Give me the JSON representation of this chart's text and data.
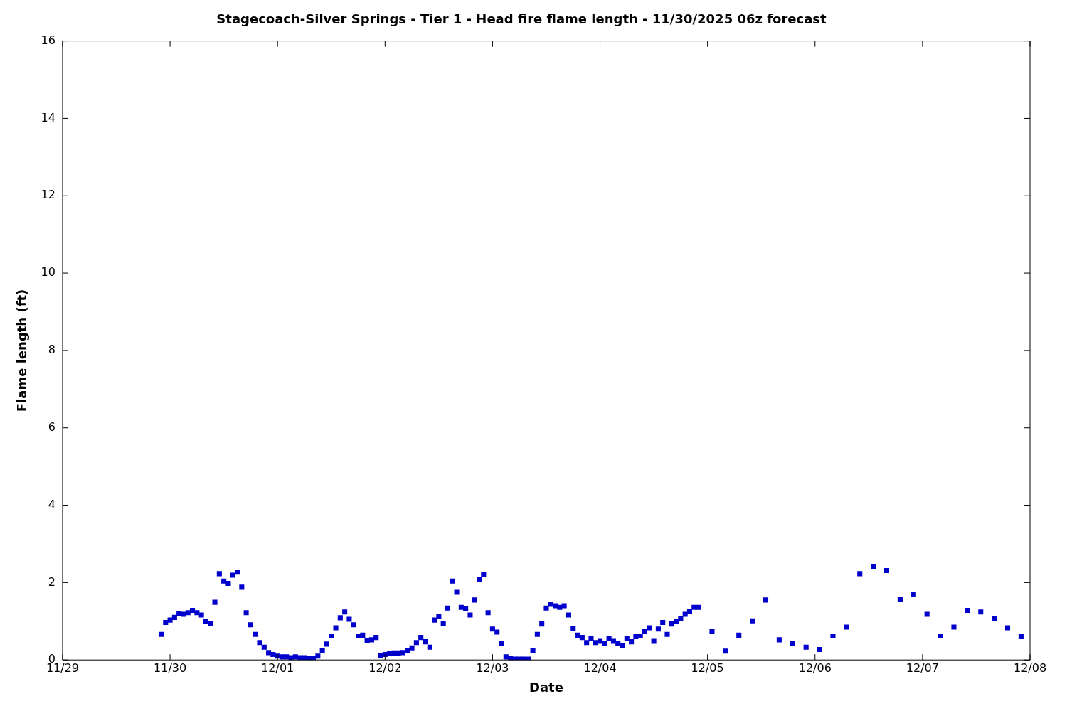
{
  "chart_data": {
    "type": "scatter",
    "title": "Stagecoach-Silver Springs - Tier 1 - Head fire flame length - 11/30/2025 06z forecast",
    "xlabel": "Date",
    "ylabel": "Flame length (ft)",
    "x": [
      "--11-29T22:00",
      "--11-29T23:00",
      "--11-30T00:00",
      "--11-30T01:00",
      "--11-30T02:00",
      "--11-30T03:00",
      "--11-30T04:00",
      "--11-30T05:00",
      "--11-30T06:00",
      "--11-30T07:00",
      "--11-30T08:00",
      "--11-30T09:00",
      "--11-30T10:00",
      "--11-30T11:00",
      "--11-30T12:00",
      "--11-30T13:00",
      "--11-30T14:00",
      "--11-30T15:00",
      "--11-30T16:00",
      "--11-30T17:00",
      "--11-30T18:00",
      "--11-30T19:00",
      "--11-30T20:00",
      "--11-30T21:00",
      "--11-30T22:00",
      "--11-30T23:00",
      "--12-01T00:00",
      "--12-01T01:00",
      "--12-01T02:00",
      "--12-01T03:00",
      "--12-01T04:00",
      "--12-01T05:00",
      "--12-01T06:00",
      "--12-01T07:00",
      "--12-01T08:00",
      "--12-01T09:00",
      "--12-01T10:00",
      "--12-01T11:00",
      "--12-01T12:00",
      "--12-01T13:00",
      "--12-01T14:00",
      "--12-01T15:00",
      "--12-01T16:00",
      "--12-01T17:00",
      "--12-01T18:00",
      "--12-01T19:00",
      "--12-01T20:00",
      "--12-01T21:00",
      "--12-01T22:00",
      "--12-01T23:00",
      "--12-02T00:00",
      "--12-02T01:00",
      "--12-02T02:00",
      "--12-02T03:00",
      "--12-02T04:00",
      "--12-02T05:00",
      "--12-02T06:00",
      "--12-02T07:00",
      "--12-02T08:00",
      "--12-02T09:00",
      "--12-02T10:00",
      "--12-02T11:00",
      "--12-02T12:00",
      "--12-02T13:00",
      "--12-02T14:00",
      "--12-02T15:00",
      "--12-02T16:00",
      "--12-02T17:00",
      "--12-02T18:00",
      "--12-02T19:00",
      "--12-02T20:00",
      "--12-02T21:00",
      "--12-02T22:00",
      "--12-02T23:00",
      "--12-03T00:00",
      "--12-03T01:00",
      "--12-03T02:00",
      "--12-03T03:00",
      "--12-03T04:00",
      "--12-03T05:00",
      "--12-03T06:00",
      "--12-03T07:00",
      "--12-03T08:00",
      "--12-03T09:00",
      "--12-03T10:00",
      "--12-03T11:00",
      "--12-03T12:00",
      "--12-03T13:00",
      "--12-03T14:00",
      "--12-03T15:00",
      "--12-03T16:00",
      "--12-03T17:00",
      "--12-03T18:00",
      "--12-03T19:00",
      "--12-03T20:00",
      "--12-03T21:00",
      "--12-03T22:00",
      "--12-03T23:00",
      "--12-04T00:00",
      "--12-04T01:00",
      "--12-04T02:00",
      "--12-04T03:00",
      "--12-04T04:00",
      "--12-04T05:00",
      "--12-04T06:00",
      "--12-04T07:00",
      "--12-04T08:00",
      "--12-04T09:00",
      "--12-04T10:00",
      "--12-04T11:00",
      "--12-04T12:00",
      "--12-04T13:00",
      "--12-04T14:00",
      "--12-04T15:00",
      "--12-04T16:00",
      "--12-04T17:00",
      "--12-04T18:00",
      "--12-04T19:00",
      "--12-04T20:00",
      "--12-04T21:00",
      "--12-04T22:00",
      "--12-05T01:00",
      "--12-05T04:00",
      "--12-05T07:00",
      "--12-05T10:00",
      "--12-05T13:00",
      "--12-05T16:00",
      "--12-05T19:00",
      "--12-05T22:00",
      "--12-06T01:00",
      "--12-06T04:00",
      "--12-06T07:00",
      "--12-06T10:00",
      "--12-06T13:00",
      "--12-06T16:00",
      "--12-06T19:00",
      "--12-06T22:00",
      "--12-07T01:00",
      "--12-07T04:00",
      "--12-07T07:00",
      "--12-07T10:00",
      "--12-07T13:00",
      "--12-07T16:00",
      "--12-07T19:00",
      "--12-07T22:00"
    ],
    "values": [
      0.66,
      0.97,
      1.03,
      1.1,
      1.2,
      1.18,
      1.22,
      1.28,
      1.22,
      1.16,
      1.0,
      0.95,
      1.49,
      2.23,
      2.04,
      1.98,
      2.19,
      2.27,
      1.88,
      1.22,
      0.91,
      0.66,
      0.45,
      0.33,
      0.19,
      0.14,
      0.1,
      0.08,
      0.08,
      0.06,
      0.08,
      0.06,
      0.06,
      0.04,
      0.04,
      0.1,
      0.25,
      0.41,
      0.62,
      0.83,
      1.09,
      1.24,
      1.05,
      0.91,
      0.62,
      0.64,
      0.5,
      0.52,
      0.58,
      0.12,
      0.14,
      0.16,
      0.18,
      0.18,
      0.19,
      0.25,
      0.31,
      0.45,
      0.58,
      0.47,
      0.33,
      1.03,
      1.12,
      0.95,
      1.34,
      2.04,
      1.75,
      1.36,
      1.32,
      1.16,
      1.55,
      2.09,
      2.21,
      1.22,
      0.8,
      0.72,
      0.43,
      0.08,
      0.04,
      0.02,
      0.02,
      0.02,
      0.02,
      0.25,
      0.66,
      0.93,
      1.34,
      1.44,
      1.4,
      1.36,
      1.4,
      1.16,
      0.81,
      0.64,
      0.58,
      0.45,
      0.56,
      0.45,
      0.48,
      0.43,
      0.56,
      0.48,
      0.43,
      0.37,
      0.56,
      0.47,
      0.6,
      0.62,
      0.74,
      0.83,
      0.48,
      0.8,
      0.97,
      0.66,
      0.93,
      0.99,
      1.07,
      1.18,
      1.26,
      1.36,
      1.36,
      0.74,
      0.23,
      0.64,
      1.01,
      1.55,
      0.52,
      0.43,
      0.33,
      0.27,
      0.62,
      0.85,
      2.23,
      2.42,
      2.31,
      1.57,
      1.69,
      1.18,
      0.62,
      0.85,
      1.28,
      1.24,
      1.07,
      0.83,
      0.6
    ],
    "color": "#0000cc",
    "marker": "square",
    "grid": false,
    "legend": false,
    "xlim": [
      "--11-29",
      "--12-08"
    ],
    "xticks": [
      {
        "value": "--11-29",
        "label": "11/29"
      },
      {
        "value": "--11-30",
        "label": "11/30"
      },
      {
        "value": "--12-01",
        "label": "12/01"
      },
      {
        "value": "--12-02",
        "label": "12/02"
      },
      {
        "value": "--12-03",
        "label": "12/03"
      },
      {
        "value": "--12-04",
        "label": "12/04"
      },
      {
        "value": "--12-05",
        "label": "12/05"
      },
      {
        "value": "--12-06",
        "label": "12/06"
      },
      {
        "value": "--12-07",
        "label": "12/07"
      },
      {
        "value": "--12-08",
        "label": "12/08"
      }
    ],
    "ylim": [
      0,
      16
    ],
    "yticks": [
      0,
      2,
      4,
      6,
      8,
      10,
      12,
      14,
      16
    ]
  }
}
